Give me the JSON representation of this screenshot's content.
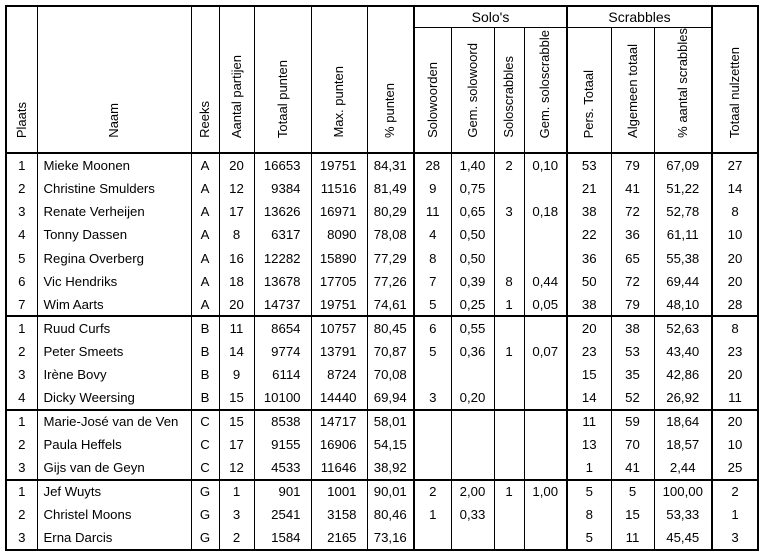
{
  "colors": {
    "border": "#000000",
    "background": "#ffffff",
    "text": "#000000"
  },
  "table": {
    "groups": {
      "solos": "Solo's",
      "scrabbles": "Scrabbles"
    },
    "columns": {
      "plaats": "Plaats",
      "naam": "Naam",
      "reeks": "Reeks",
      "aantal_partijen": "Aantal partijen",
      "totaal_punten": "Totaal punten",
      "max_punten": "Max. punten",
      "pct_punten": "% punten",
      "solowoorden": "Solowoorden",
      "gem_solowoord": "Gem. solowoord",
      "soloscrabbles": "Soloscrabbles",
      "gem_soloscrabble": "Gem. soloscrabble",
      "pers_totaal": "Pers. Totaal",
      "algemeen_totaal": "Algemeen totaal",
      "pct_aantal_scrabbles": "% aantal scrabbles",
      "totaal_nulzetten": "Totaal nulzetten"
    },
    "column_order": [
      "plaats",
      "naam",
      "reeks",
      "aantal_partijen",
      "totaal_punten",
      "max_punten",
      "pct_punten",
      "solowoorden",
      "gem_solowoord",
      "soloscrabbles",
      "gem_soloscrabble",
      "pers_totaal",
      "algemeen_totaal",
      "pct_aantal_scrabbles",
      "totaal_nulzetten"
    ],
    "sections": [
      {
        "reeks": "A",
        "rows": [
          [
            "1",
            "Mieke Moonen",
            "A",
            "20",
            "16653",
            "19751",
            "84,31",
            "28",
            "1,40",
            "2",
            "0,10",
            "53",
            "79",
            "67,09",
            "27"
          ],
          [
            "2",
            "Christine Smulders",
            "A",
            "12",
            "9384",
            "11516",
            "81,49",
            "9",
            "0,75",
            "",
            "",
            "21",
            "41",
            "51,22",
            "14"
          ],
          [
            "3",
            "Renate Verheijen",
            "A",
            "17",
            "13626",
            "16971",
            "80,29",
            "11",
            "0,65",
            "3",
            "0,18",
            "38",
            "72",
            "52,78",
            "8"
          ],
          [
            "4",
            "Tonny Dassen",
            "A",
            "8",
            "6317",
            "8090",
            "78,08",
            "4",
            "0,50",
            "",
            "",
            "22",
            "36",
            "61,11",
            "10"
          ],
          [
            "5",
            "Regina Overberg",
            "A",
            "16",
            "12282",
            "15890",
            "77,29",
            "8",
            "0,50",
            "",
            "",
            "36",
            "65",
            "55,38",
            "20"
          ],
          [
            "6",
            "Vic Hendriks",
            "A",
            "18",
            "13678",
            "17705",
            "77,26",
            "7",
            "0,39",
            "8",
            "0,44",
            "50",
            "72",
            "69,44",
            "20"
          ],
          [
            "7",
            "Wim Aarts",
            "A",
            "20",
            "14737",
            "19751",
            "74,61",
            "5",
            "0,25",
            "1",
            "0,05",
            "38",
            "79",
            "48,10",
            "28"
          ]
        ]
      },
      {
        "reeks": "B",
        "rows": [
          [
            "1",
            "Ruud Curfs",
            "B",
            "11",
            "8654",
            "10757",
            "80,45",
            "6",
            "0,55",
            "",
            "",
            "20",
            "38",
            "52,63",
            "8"
          ],
          [
            "2",
            "Peter Smeets",
            "B",
            "14",
            "9774",
            "13791",
            "70,87",
            "5",
            "0,36",
            "1",
            "0,07",
            "23",
            "53",
            "43,40",
            "23"
          ],
          [
            "3",
            "Irène Bovy",
            "B",
            "9",
            "6114",
            "8724",
            "70,08",
            "",
            "",
            "",
            "",
            "15",
            "35",
            "42,86",
            "20"
          ],
          [
            "4",
            "Dicky Weersing",
            "B",
            "15",
            "10100",
            "14440",
            "69,94",
            "3",
            "0,20",
            "",
            "",
            "14",
            "52",
            "26,92",
            "11"
          ]
        ]
      },
      {
        "reeks": "C",
        "rows": [
          [
            "1",
            "Marie-José van de Ven",
            "C",
            "15",
            "8538",
            "14717",
            "58,01",
            "",
            "",
            "",
            "",
            "11",
            "59",
            "18,64",
            "20"
          ],
          [
            "2",
            "Paula Heffels",
            "C",
            "17",
            "9155",
            "16906",
            "54,15",
            "",
            "",
            "",
            "",
            "13",
            "70",
            "18,57",
            "10"
          ],
          [
            "3",
            "Gijs van de Geyn",
            "C",
            "12",
            "4533",
            "11646",
            "38,92",
            "",
            "",
            "",
            "",
            "1",
            "41",
            "2,44",
            "25"
          ]
        ]
      },
      {
        "reeks": "G",
        "rows": [
          [
            "1",
            "Jef Wuyts",
            "G",
            "1",
            "901",
            "1001",
            "90,01",
            "2",
            "2,00",
            "1",
            "1,00",
            "5",
            "5",
            "100,00",
            "2"
          ],
          [
            "2",
            "Christel Moons",
            "G",
            "3",
            "2541",
            "3158",
            "80,46",
            "1",
            "0,33",
            "",
            "",
            "8",
            "15",
            "53,33",
            "1"
          ],
          [
            "3",
            "Erna Darcis",
            "G",
            "2",
            "1584",
            "2165",
            "73,16",
            "",
            "",
            "",
            "",
            "5",
            "11",
            "45,45",
            "3"
          ]
        ]
      }
    ]
  }
}
